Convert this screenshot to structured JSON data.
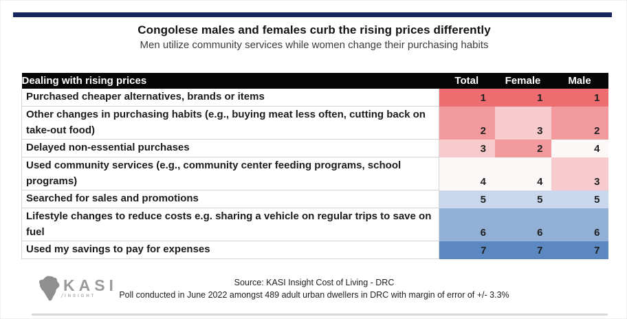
{
  "page": {
    "title": "Congolese males and females curb the rising prices differently",
    "subtitle": "Men utilize community services while women change their purchasing habits"
  },
  "table": {
    "header": {
      "label": "Dealing with rising prices",
      "columns": [
        "Total",
        "Female",
        "Male"
      ]
    },
    "rows": [
      {
        "label": "Purchased cheaper alternatives, brands or items",
        "values": [
          1,
          1,
          1
        ]
      },
      {
        "label": "Other changes in purchasing habits (e.g., buying meat less often, cutting back on take-out food)",
        "values": [
          2,
          3,
          2
        ]
      },
      {
        "label": "Delayed non-essential purchases",
        "values": [
          3,
          2,
          4
        ]
      },
      {
        "label": "Used community services (e.g., community center feeding programs, school programs)",
        "values": [
          4,
          4,
          3
        ]
      },
      {
        "label": "Searched for sales and promotions",
        "values": [
          5,
          5,
          5
        ]
      },
      {
        "label": "Lifestyle changes to reduce costs e.g. sharing a vehicle on regular trips to save on fuel",
        "values": [
          6,
          6,
          6
        ]
      },
      {
        "label": "Used my savings to pay for expenses",
        "values": [
          7,
          7,
          7
        ]
      }
    ],
    "rank_colors": {
      "1": "#ed6d70",
      "2": "#f29a9d",
      "3": "#f7cbcd",
      "4": "#fdf8f8",
      "5": "#c8d7eb",
      "6": "#92b0d5",
      "7": "#5c88c1"
    }
  },
  "footer": {
    "logo_text": "KASI",
    "logo_subtext": "INSIGHT",
    "source_line1": "Source: KASI Insight Cost of Living - DRC",
    "source_line2": "Poll conducted in June 2022 amongst 489 adult urban dwellers in DRC with margin of error of +/- 3.3%"
  },
  "colors": {
    "top_bar": "#17265c",
    "table_header_bg": "#060606",
    "table_header_text": "#ffffff",
    "logo_gray": "#9a9a9a",
    "bottom_bar": "#d9d9d9"
  },
  "chart_data": {
    "type": "heatmap",
    "title": "Congolese males and females curb the rising prices differently",
    "subtitle": "Men utilize community services while women change their purchasing habits",
    "row_header": "Dealing with rising prices",
    "categories": [
      "Purchased cheaper alternatives, brands or items",
      "Other changes in purchasing habits (e.g., buying meat less often, cutting back on take-out food)",
      "Delayed non-essential purchases",
      "Used community services (e.g., community center feeding programs, school programs)",
      "Searched for sales and promotions",
      "Lifestyle changes to reduce costs e.g. sharing a vehicle on regular trips to save on fuel",
      "Used my savings to pay for expenses"
    ],
    "series": [
      {
        "name": "Total",
        "values": [
          1,
          2,
          3,
          4,
          5,
          6,
          7
        ]
      },
      {
        "name": "Female",
        "values": [
          1,
          3,
          2,
          4,
          5,
          6,
          7
        ]
      },
      {
        "name": "Male",
        "values": [
          1,
          2,
          4,
          3,
          5,
          6,
          7
        ]
      }
    ],
    "value_range": [
      1,
      7
    ],
    "color_scale": "diverging red (rank 1) through near-white (rank 4) to blue (rank 7)",
    "legend_position": "none",
    "grid": false
  }
}
